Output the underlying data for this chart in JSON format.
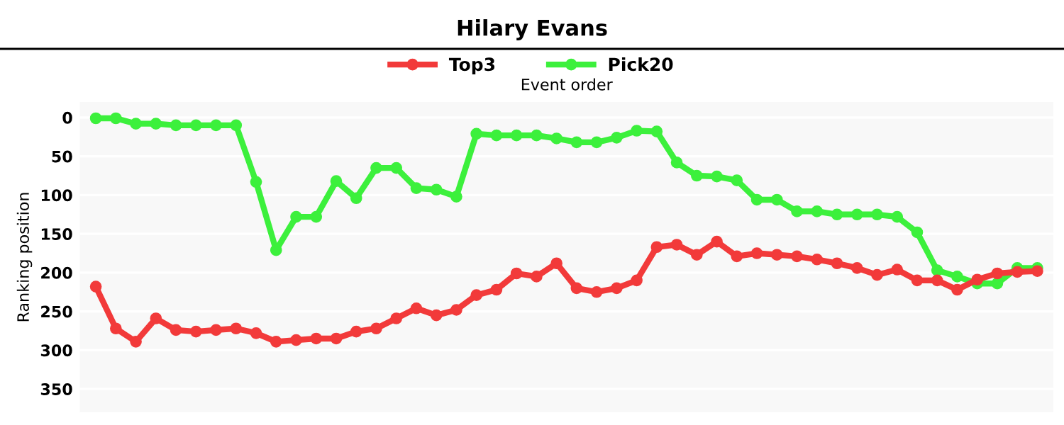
{
  "chart_data": {
    "type": "line",
    "title": "Hilary Evans",
    "xlabel": "Event order",
    "ylabel": "Ranking position",
    "categories": [
      null,
      null,
      null,
      null,
      null,
      null,
      null,
      null,
      null,
      null,
      null,
      null,
      null,
      null,
      null,
      null,
      null,
      null,
      null,
      null,
      null,
      null,
      null,
      null,
      null,
      null,
      null,
      null,
      null,
      null,
      null,
      null,
      null,
      null,
      null,
      null,
      null,
      null,
      null,
      null,
      null,
      null,
      null,
      null,
      null,
      null,
      null,
      null
    ],
    "series": [
      {
        "name": "Top3",
        "color": "#f23a3a",
        "values": [
          218,
          272,
          289,
          259,
          274,
          276,
          274,
          272,
          278,
          289,
          287,
          285,
          285,
          276,
          272,
          259,
          246,
          255,
          248,
          229,
          222,
          201,
          205,
          188,
          220,
          225,
          220,
          210,
          167,
          164,
          177,
          160,
          179,
          175,
          177,
          179,
          183,
          188,
          194,
          203,
          196,
          210,
          210,
          222,
          209,
          201,
          199,
          198
        ]
      },
      {
        "name": "Pick20",
        "color": "#3cf03c",
        "values": [
          1,
          1,
          8,
          8,
          10,
          10,
          10,
          10,
          83,
          171,
          128,
          128,
          82,
          104,
          65,
          65,
          91,
          93,
          102,
          21,
          23,
          23,
          23,
          27,
          32,
          32,
          26,
          17,
          18,
          58,
          75,
          76,
          81,
          106,
          106,
          121,
          121,
          125,
          125,
          125,
          128,
          148,
          197,
          205,
          214,
          214,
          194,
          194
        ]
      }
    ],
    "ylim": [
      380,
      -20
    ],
    "yticks": [
      0,
      50,
      100,
      150,
      200,
      250,
      300,
      350
    ],
    "tick_labels": "y",
    "grid": "y",
    "legend": "top",
    "marker": "circle",
    "line_style": "solid"
  }
}
